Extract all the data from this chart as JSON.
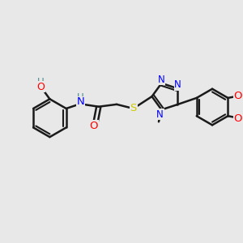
{
  "background_color": "#e8e8e8",
  "atom_colors": {
    "C": "#000000",
    "N": "#0000ff",
    "O": "#ff0000",
    "S": "#cccc00",
    "H": "#4a8a8a"
  },
  "bond_color": "#1a1a1a",
  "bond_width": 1.8,
  "figsize": [
    3.0,
    3.0
  ],
  "dpi": 100
}
